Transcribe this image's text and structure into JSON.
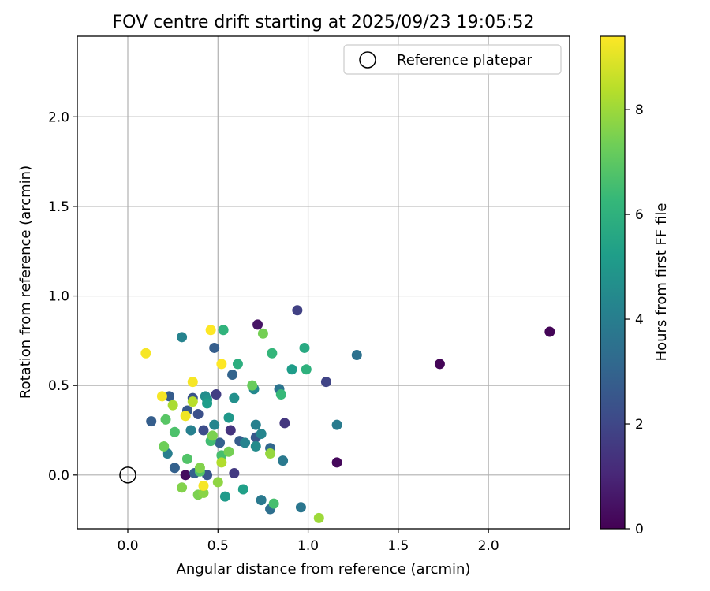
{
  "chart_data": {
    "type": "scatter",
    "title": "FOV centre drift starting at 2025/09/23 19:05:52",
    "xlabel": "Angular distance from reference (arcmin)",
    "ylabel": "Rotation from reference (arcmin)",
    "xlim": [
      -0.28,
      2.45
    ],
    "ylim": [
      -0.3,
      2.45
    ],
    "xticks": [
      0.0,
      0.5,
      1.0,
      1.5,
      2.0
    ],
    "xtick_labels": [
      "0.0",
      "0.5",
      "1.0",
      "1.5",
      "2.0"
    ],
    "yticks": [
      0.0,
      0.5,
      1.0,
      1.5,
      2.0
    ],
    "ytick_labels": [
      "0.0",
      "0.5",
      "1.0",
      "1.5",
      "2.0"
    ],
    "grid": true,
    "legend": {
      "position": "top-right",
      "label": "Reference platepar"
    },
    "reference_point": {
      "x": 0.0,
      "y": 0.0
    },
    "colorbar": {
      "label": "Hours from first FF file",
      "min": 0,
      "max": 9.4,
      "ticks": [
        0,
        2,
        4,
        6,
        8
      ],
      "tick_labels": [
        "0",
        "2",
        "4",
        "6",
        "8"
      ],
      "colormap": "viridis"
    },
    "points": [
      {
        "x": 2.34,
        "y": 0.8,
        "h": 0.1
      },
      {
        "x": 1.73,
        "y": 0.62,
        "h": 0.1
      },
      {
        "x": 1.16,
        "y": 0.07,
        "h": 0.2
      },
      {
        "x": 0.72,
        "y": 0.84,
        "h": 0.5
      },
      {
        "x": 0.32,
        "y": 0.0,
        "h": 0.3
      },
      {
        "x": 0.94,
        "y": 0.92,
        "h": 1.8
      },
      {
        "x": 1.1,
        "y": 0.52,
        "h": 1.9
      },
      {
        "x": 0.87,
        "y": 0.29,
        "h": 1.5
      },
      {
        "x": 0.59,
        "y": 0.01,
        "h": 1.6
      },
      {
        "x": 0.57,
        "y": 0.25,
        "h": 1.4
      },
      {
        "x": 0.49,
        "y": 0.45,
        "h": 1.7
      },
      {
        "x": 0.42,
        "y": 0.25,
        "h": 2.2
      },
      {
        "x": 0.36,
        "y": 0.43,
        "h": 2.4
      },
      {
        "x": 0.39,
        "y": 0.34,
        "h": 2.3
      },
      {
        "x": 0.33,
        "y": 0.36,
        "h": 2.6
      },
      {
        "x": 0.13,
        "y": 0.3,
        "h": 2.8
      },
      {
        "x": 0.23,
        "y": 0.44,
        "h": 2.7
      },
      {
        "x": 0.26,
        "y": 0.04,
        "h": 2.9
      },
      {
        "x": 0.37,
        "y": 0.01,
        "h": 2.9
      },
      {
        "x": 0.44,
        "y": 0.0,
        "h": 2.5
      },
      {
        "x": 0.48,
        "y": 0.71,
        "h": 2.8
      },
      {
        "x": 0.51,
        "y": 0.18,
        "h": 2.9
      },
      {
        "x": 0.58,
        "y": 0.56,
        "h": 3.0
      },
      {
        "x": 0.62,
        "y": 0.19,
        "h": 2.7
      },
      {
        "x": 0.71,
        "y": 0.21,
        "h": 2.6
      },
      {
        "x": 0.79,
        "y": 0.15,
        "h": 3.1
      },
      {
        "x": 0.79,
        "y": -0.19,
        "h": 3.4
      },
      {
        "x": 0.96,
        "y": -0.18,
        "h": 3.7
      },
      {
        "x": 0.74,
        "y": -0.14,
        "h": 3.8
      },
      {
        "x": 0.86,
        "y": 0.08,
        "h": 3.8
      },
      {
        "x": 0.84,
        "y": 0.48,
        "h": 3.6
      },
      {
        "x": 1.16,
        "y": 0.28,
        "h": 3.9
      },
      {
        "x": 1.27,
        "y": 0.67,
        "h": 3.5
      },
      {
        "x": 0.3,
        "y": 0.77,
        "h": 4.2
      },
      {
        "x": 0.35,
        "y": 0.25,
        "h": 4.1
      },
      {
        "x": 0.22,
        "y": 0.12,
        "h": 4.0
      },
      {
        "x": 0.48,
        "y": 0.28,
        "h": 4.3
      },
      {
        "x": 0.65,
        "y": 0.18,
        "h": 4.2
      },
      {
        "x": 0.71,
        "y": 0.28,
        "h": 4.1
      },
      {
        "x": 0.7,
        "y": 0.48,
        "h": 4.4
      },
      {
        "x": 0.74,
        "y": 0.23,
        "h": 4.3
      },
      {
        "x": 0.43,
        "y": 0.44,
        "h": 4.6
      },
      {
        "x": 0.44,
        "y": 0.42,
        "h": 4.8
      },
      {
        "x": 0.56,
        "y": 0.32,
        "h": 5.0
      },
      {
        "x": 0.59,
        "y": 0.43,
        "h": 4.7
      },
      {
        "x": 0.71,
        "y": 0.16,
        "h": 4.5
      },
      {
        "x": 0.54,
        "y": -0.12,
        "h": 5.1
      },
      {
        "x": 0.64,
        "y": -0.08,
        "h": 5.3
      },
      {
        "x": 0.44,
        "y": 0.4,
        "h": 5.2
      },
      {
        "x": 0.91,
        "y": 0.59,
        "h": 5.2
      },
      {
        "x": 0.98,
        "y": 0.71,
        "h": 5.7
      },
      {
        "x": 0.99,
        "y": 0.59,
        "h": 6.0
      },
      {
        "x": 0.53,
        "y": 0.81,
        "h": 6.1
      },
      {
        "x": 0.61,
        "y": 0.62,
        "h": 5.9
      },
      {
        "x": 0.8,
        "y": 0.68,
        "h": 6.2
      },
      {
        "x": 0.85,
        "y": 0.45,
        "h": 6.3
      },
      {
        "x": 0.81,
        "y": -0.16,
        "h": 6.6
      },
      {
        "x": 0.46,
        "y": 0.19,
        "h": 6.5
      },
      {
        "x": 0.52,
        "y": 0.11,
        "h": 6.6
      },
      {
        "x": 0.26,
        "y": 0.24,
        "h": 6.7
      },
      {
        "x": 0.21,
        "y": 0.31,
        "h": 6.9
      },
      {
        "x": 0.33,
        "y": 0.09,
        "h": 6.8
      },
      {
        "x": 0.4,
        "y": 0.02,
        "h": 6.8
      },
      {
        "x": 0.69,
        "y": 0.5,
        "h": 7.2
      },
      {
        "x": 0.2,
        "y": 0.16,
        "h": 7.3
      },
      {
        "x": 0.56,
        "y": 0.13,
        "h": 7.4
      },
      {
        "x": 0.75,
        "y": 0.79,
        "h": 7.4
      },
      {
        "x": 0.47,
        "y": 0.22,
        "h": 7.5
      },
      {
        "x": 0.3,
        "y": -0.07,
        "h": 7.6
      },
      {
        "x": 0.39,
        "y": -0.11,
        "h": 7.5
      },
      {
        "x": 0.42,
        "y": -0.1,
        "h": 7.7
      },
      {
        "x": 0.4,
        "y": 0.04,
        "h": 7.6
      },
      {
        "x": 0.5,
        "y": -0.04,
        "h": 7.8
      },
      {
        "x": 0.79,
        "y": 0.12,
        "h": 7.9
      },
      {
        "x": 1.06,
        "y": -0.24,
        "h": 8.0
      },
      {
        "x": 0.52,
        "y": 0.07,
        "h": 8.3
      },
      {
        "x": 0.25,
        "y": 0.39,
        "h": 8.2
      },
      {
        "x": 0.36,
        "y": 0.41,
        "h": 8.4
      },
      {
        "x": 0.1,
        "y": 0.68,
        "h": 9.3
      },
      {
        "x": 0.19,
        "y": 0.44,
        "h": 9.3
      },
      {
        "x": 0.36,
        "y": 0.52,
        "h": 9.3
      },
      {
        "x": 0.46,
        "y": 0.81,
        "h": 9.4
      },
      {
        "x": 0.52,
        "y": 0.62,
        "h": 9.4
      },
      {
        "x": 0.32,
        "y": 0.33,
        "h": 9.2
      },
      {
        "x": 0.42,
        "y": -0.06,
        "h": 9.3
      }
    ]
  }
}
